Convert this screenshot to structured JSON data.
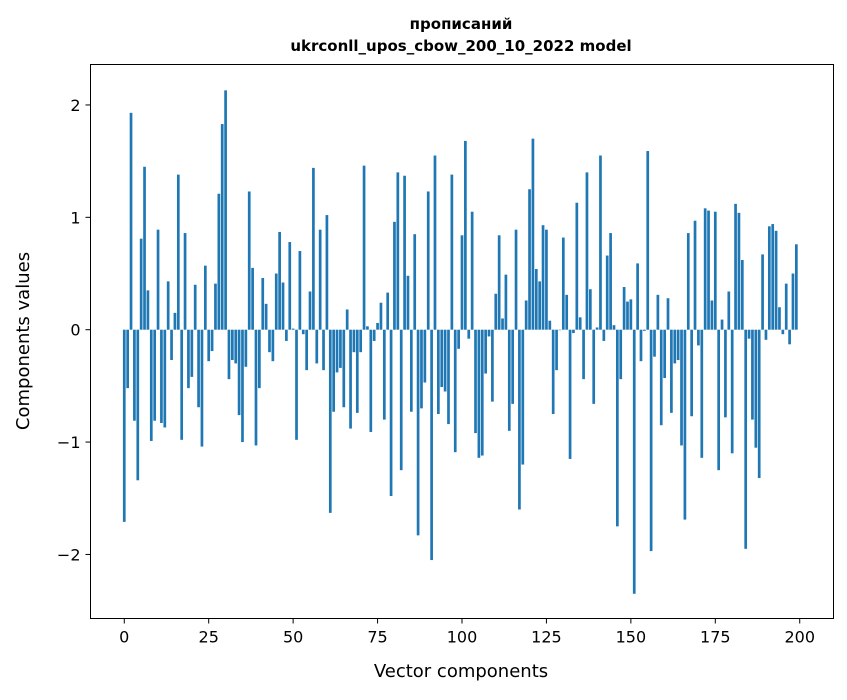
{
  "chart_data": {
    "type": "bar",
    "title_line1": "прописаний",
    "title_line2": "ukrconll_upos_cbow_200_10_2022 model",
    "xlabel": "Vector components",
    "ylabel": "Components values",
    "xlim": [
      -10,
      210
    ],
    "ylim": [
      -2.57,
      2.36
    ],
    "xticks": [
      0,
      25,
      50,
      75,
      100,
      125,
      150,
      175,
      200
    ],
    "xtick_labels": [
      "0",
      "25",
      "50",
      "75",
      "100",
      "125",
      "150",
      "175",
      "200"
    ],
    "yticks": [
      -2,
      -1,
      0,
      1,
      2
    ],
    "ytick_labels": [
      "−2",
      "−1",
      "0",
      "1",
      "2"
    ],
    "grid": false,
    "bar_color": "#1f77b4",
    "values": [
      -1.71,
      -0.52,
      1.93,
      -0.81,
      -1.34,
      0.81,
      1.45,
      0.35,
      -0.99,
      -0.81,
      0.89,
      -0.83,
      -0.87,
      0.43,
      -0.27,
      0.15,
      1.38,
      -0.98,
      0.86,
      -0.52,
      -0.42,
      0.4,
      -0.69,
      -1.04,
      0.57,
      -0.28,
      -0.19,
      0.41,
      1.21,
      1.83,
      2.13,
      -0.44,
      -0.27,
      -0.3,
      -0.76,
      -1.0,
      -0.33,
      1.23,
      0.55,
      -1.03,
      -0.52,
      0.46,
      0.23,
      -0.2,
      -0.28,
      0.5,
      0.87,
      0.42,
      -0.1,
      0.78,
      0.01,
      -0.98,
      0.7,
      -0.04,
      -0.36,
      0.34,
      1.44,
      -0.3,
      0.89,
      -0.36,
      1.02,
      -1.63,
      -0.73,
      -0.38,
      -0.34,
      -0.69,
      0.18,
      -0.88,
      -0.2,
      -0.74,
      -0.2,
      1.46,
      0.03,
      -0.91,
      -0.1,
      0.06,
      0.24,
      -0.8,
      0.33,
      -1.48,
      0.96,
      1.4,
      -1.25,
      1.37,
      0.48,
      -0.73,
      0.85,
      -1.83,
      -0.7,
      -0.47,
      1.23,
      -2.05,
      1.55,
      -0.75,
      -0.51,
      -0.55,
      -0.84,
      1.38,
      -1.09,
      -0.17,
      0.84,
      1.68,
      -0.08,
      1.05,
      -0.92,
      -1.14,
      -1.12,
      -0.39,
      -0.06,
      -0.64,
      0.32,
      0.84,
      0.1,
      0.49,
      -0.9,
      -0.66,
      0.89,
      -1.6,
      -1.2,
      0.26,
      1.25,
      1.7,
      0.54,
      0.43,
      0.93,
      0.89,
      0.08,
      -0.75,
      -0.36,
      0.0,
      0.82,
      0.31,
      -1.15,
      -0.03,
      1.13,
      0.11,
      -0.44,
      1.4,
      0.36,
      -0.66,
      0.02,
      1.55,
      -0.1,
      0.66,
      0.86,
      0.04,
      -1.75,
      -0.44,
      0.38,
      0.25,
      0.27,
      -2.35,
      0.59,
      -0.28,
      -0.01,
      1.59,
      -1.97,
      -0.24,
      0.31,
      -0.85,
      -0.43,
      0.28,
      -0.74,
      -0.3,
      -0.27,
      -1.03,
      -1.69,
      0.86,
      -0.77,
      0.97,
      -0.14,
      -1.14,
      1.08,
      1.06,
      0.26,
      1.05,
      -1.25,
      0.09,
      -0.78,
      0.34,
      -1.1,
      1.12,
      1.04,
      0.62,
      -1.95,
      -0.08,
      -0.8,
      -1.05,
      -1.32,
      0.67,
      -0.09,
      0.92,
      0.94,
      0.88,
      0.2,
      -0.04,
      0.41,
      -0.13,
      0.5,
      0.76
    ]
  }
}
